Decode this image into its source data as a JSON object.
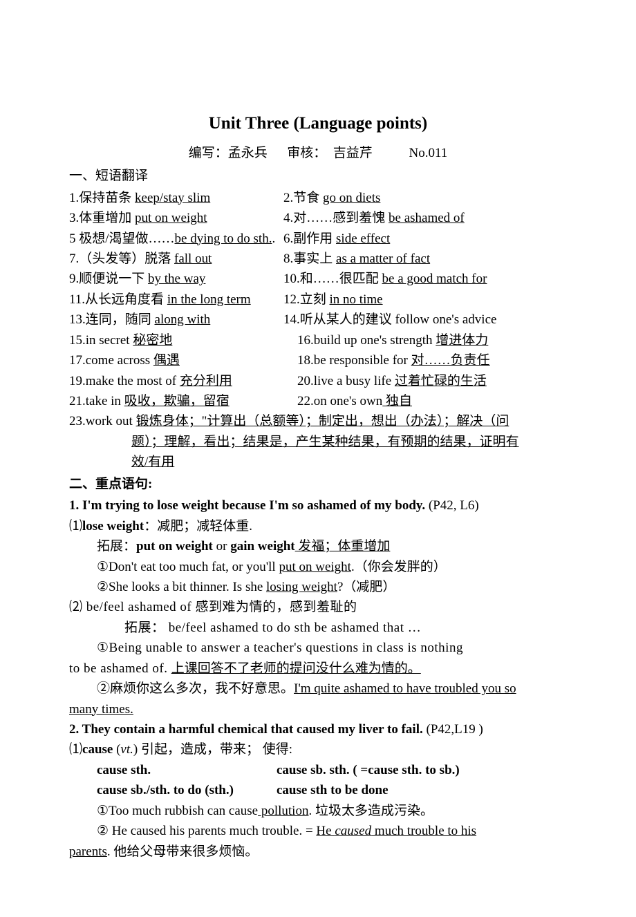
{
  "title": "Unit Three (Language points)",
  "byline": {
    "writer_label": "编写：",
    "writer": "孟永兵",
    "reviewer_label": "审核：",
    "reviewer": "吉益芹",
    "no": "No.011"
  },
  "sec1_heading": "一、短语翻译",
  "phrases": [
    {
      "left": {
        "num": "1.",
        "cn": "保持苗条 ",
        "en": "keep/stay slim"
      },
      "right": {
        "num": "2.",
        "cn": "节食 ",
        "en": "go on diets"
      }
    },
    {
      "left": {
        "num": "3.",
        "cn": "体重增加 ",
        "en": "put on weight"
      },
      "right": {
        "num": "4.",
        "cn": "对……感到羞愧 ",
        "en": "be ashamed of"
      }
    },
    {
      "left": {
        "num": "5 ",
        "cn": "极想/渴望做……",
        "en": "be dying to do sth.",
        "dot_after": "."
      },
      "right": {
        "num": "6.",
        "cn": "副作用 ",
        "en": "side effect"
      }
    },
    {
      "left": {
        "num": "7.",
        "cn": "（头发等）脱落 ",
        "en": "fall out"
      },
      "right": {
        "num": "8.",
        "cn": "事实上 ",
        "en": "as a matter of fact"
      }
    },
    {
      "left": {
        "num": "9.",
        "cn": "顺便说一下 ",
        "en": "by the way"
      },
      "right": {
        "num": " 10.",
        "cn": "和……很匹配 ",
        "en": "be a good match for"
      }
    },
    {
      "left": {
        "num": "11.",
        "cn": "从长远角度看 ",
        "en": "in the long term"
      },
      "right": {
        "num": " 12.",
        "cn": "立刻 ",
        "en": "in no time"
      }
    },
    {
      "left": {
        "num": "13.",
        "cn": "连同，随同 ",
        "en": "along    with"
      },
      "right_full": "14.听从某人的建议 follow one's advice"
    },
    {
      "left_en_first": {
        "num": "15.",
        "en": "in secret  ",
        "cn": "秘密地"
      },
      "right_en_first": {
        "num": "16.",
        "en": "build up one's strength  ",
        "cn": "增进体力"
      }
    },
    {
      "left_en_first": {
        "num": "17.",
        "en": "come across  ",
        "cn": "偶遇"
      },
      "right_en_first": {
        "num": "18.",
        "en": "be responsible for  ",
        "cn": "对……负责任"
      }
    },
    {
      "left_en_first": {
        "num": "19.",
        "en": "make the most of  ",
        "cn": "充分利用"
      },
      "right_en_first": {
        "num": "20.",
        "en": "live a busy life  ",
        "cn": "过着忙碌的生活"
      }
    },
    {
      "left_en_first": {
        "num": "21.",
        "en": "take in  ",
        "cn": "吸收，欺骗，留宿"
      },
      "right_en_first": {
        "num": "22.",
        "en": "on one's own",
        "cn": " 独自"
      }
    }
  ],
  "phrase23": {
    "num": "23.",
    "en": "work out ",
    "cn_line1": "锻炼身体；\"计算出（总额等）；制定出，想出（办法）；解决（问",
    "cn_line2": "题）；理解，看出；结果是，产生某种结果，有预期的结果，证明有",
    "cn_line3": "效/有用"
  },
  "sec2_heading": "二、重点语句:",
  "item1": {
    "line": "1. I'm trying to lose weight because I'm so ashamed of my body.",
    "ref": " (P42, L6)",
    "sub1_a": "⑴",
    "sub1_b": "lose weight",
    "sub1_c": "：减肥；减轻体重.",
    "expand_label": "拓展：",
    "expand_b1": "put on weight",
    "expand_or": " or ",
    "expand_b2": "gain weight",
    "expand_u": " 发福；体重增加",
    "ex1_a": "①Don't eat too much fat, or you'll ",
    "ex1_u": "put on weight",
    "ex1_c": ".（你会发胖的）",
    "ex2_a": "②She looks a bit thinner. Is she ",
    "ex2_u": "losing weight",
    "ex2_c": "?（减肥）",
    "sub2": "⑵ be/feel ashamed of   感到难为情的，感到羞耻的",
    "sub2_expand": "拓展：  be/feel ashamed to do sth        be ashamed that …",
    "sub2_ex1_a": "①Being unable to answer a teacher's questions in class is nothing",
    "sub2_ex1_b": "to be ashamed of. ",
    "sub2_ex1_u": "上课回答不了老师的提问没什么难为情的。",
    "sub2_ex2_a": "②麻烦你这么多次，我不好意思。",
    "sub2_ex2_u1": "I'm quite ashamed to have troubled you so",
    "sub2_ex2_u2": "many times."
  },
  "item2": {
    "line": "2. They contain a harmful chemical that caused my liver to fail.",
    "ref": " (P42,L19 )",
    "sub1_a": "⑴",
    "sub1_b": "cause",
    "sub1_c": " (",
    "sub1_vt": "vt.",
    "sub1_d": ")  引起，造成，带来；  使得:",
    "forms_l1": "cause sth.",
    "forms_r1": "cause sb. sth. ( =cause sth. to sb.)",
    "forms_l2": "cause sb./sth. to do (sth.)",
    "forms_r2": "cause sth to be done",
    "ex1_a": "①Too much rubbish can cause",
    "ex1_u": " pollution",
    "ex1_c": ".  垃圾太多造成污染。",
    "ex2_a": "② He caused his parents much trouble. = ",
    "ex2_u1": "He ",
    "ex2_ui": "caused",
    "ex2_u2": " much trouble to his",
    "ex2_u3": "parents",
    "ex2_c": ".  他给父母带来很多烦恼。"
  }
}
